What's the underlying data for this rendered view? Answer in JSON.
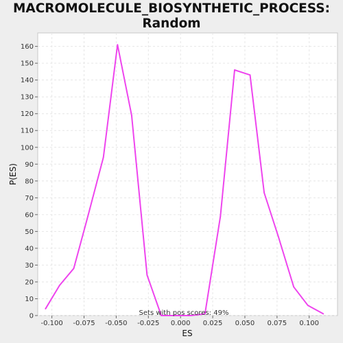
{
  "chart_data": {
    "type": "line",
    "title": "MACROMOLECULE_BIOSYNTHETIC_PROCESS: Random\nES distribution",
    "xlabel": "ES",
    "ylabel": "P(ES)",
    "xlim": [
      -0.111,
      0.122
    ],
    "ylim": [
      0,
      168
    ],
    "x_ticks": [
      -0.1,
      -0.075,
      -0.05,
      -0.025,
      0.0,
      0.025,
      0.05,
      0.075,
      0.1
    ],
    "x_tick_labels": [
      "-0.100",
      "-0.075",
      "-0.050",
      "-0.025",
      "0.000",
      "0.025",
      "0.050",
      "0.075",
      "0.100"
    ],
    "y_ticks": [
      0,
      10,
      20,
      30,
      40,
      50,
      60,
      70,
      80,
      90,
      100,
      110,
      120,
      130,
      140,
      150,
      160
    ],
    "y_tick_labels": [
      "0",
      "10",
      "20",
      "30",
      "40",
      "50",
      "60",
      "70",
      "80",
      "90",
      "100",
      "110",
      "120",
      "130",
      "140",
      "150",
      "160"
    ],
    "grid": true,
    "series": [
      {
        "color": "#ee44ee",
        "x": [
          -0.105,
          -0.094,
          -0.083,
          -0.072,
          -0.06,
          -0.049,
          -0.038,
          -0.026,
          -0.015,
          -0.004,
          0.008,
          0.019,
          0.031,
          0.042,
          0.054,
          0.065,
          0.076,
          0.088,
          0.099,
          0.111
        ],
        "y": [
          4,
          18,
          28,
          59,
          94,
          161,
          119,
          24,
          0,
          0,
          0,
          1,
          59,
          146,
          143,
          73,
          47,
          17,
          6,
          1
        ]
      }
    ],
    "annotation": "Sets with pos scores: 49%"
  }
}
